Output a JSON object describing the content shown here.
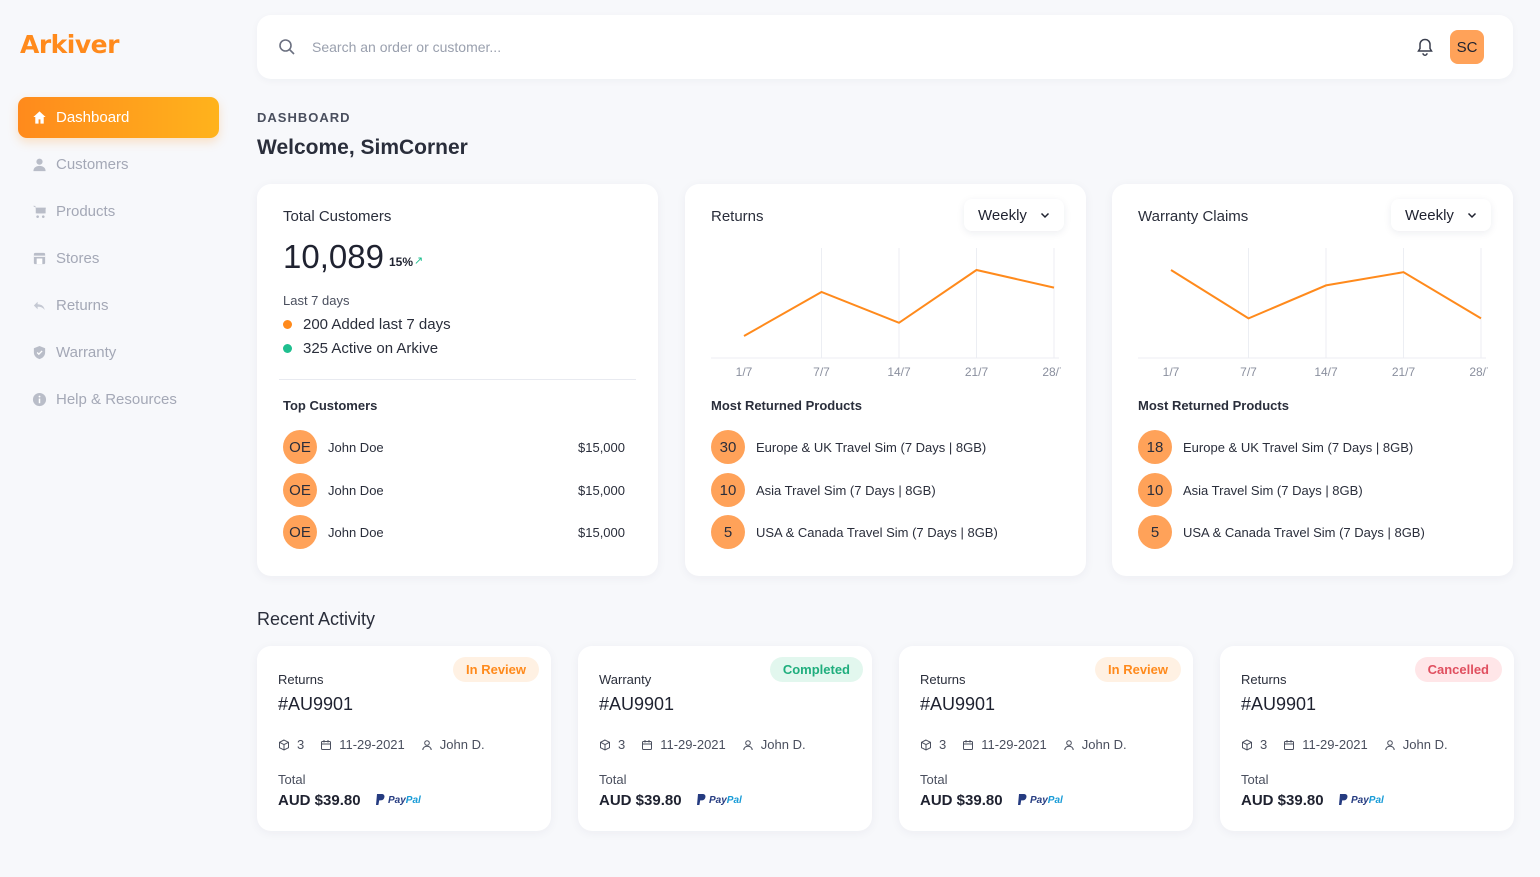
{
  "brand": {
    "logo": "Arkiver",
    "accent": "#ff8a1c"
  },
  "nav": [
    {
      "label": "Dashboard",
      "icon": "home-icon",
      "active": true
    },
    {
      "label": "Customers",
      "icon": "user-icon"
    },
    {
      "label": "Products",
      "icon": "cart-icon"
    },
    {
      "label": "Stores",
      "icon": "store-icon"
    },
    {
      "label": "Returns",
      "icon": "return-icon"
    },
    {
      "label": "Warranty",
      "icon": "shield-icon"
    },
    {
      "label": "Help & Resources",
      "icon": "info-icon"
    }
  ],
  "search": {
    "placeholder": "Search an order or customer..."
  },
  "user": {
    "initials": "SC"
  },
  "breadcrumb": "DASHBOARD",
  "welcome": "Welcome, SimCorner",
  "total_customers": {
    "title": "Total Customers",
    "value": "10,089",
    "change": "15%",
    "period": "Last 7 days",
    "stats": [
      {
        "text": "200 Added last 7 days",
        "color": "#ff8a1c"
      },
      {
        "text": "325 Active on Arkive",
        "color": "#1fbf8f"
      }
    ],
    "top_title": "Top Customers",
    "top": [
      {
        "initials": "OE",
        "name": "John Doe",
        "amount": "$15,000"
      },
      {
        "initials": "OE",
        "name": "John Doe",
        "amount": "$15,000"
      },
      {
        "initials": "OE",
        "name": "John Doe",
        "amount": "$15,000"
      }
    ]
  },
  "returns": {
    "title": "Returns",
    "period": "Weekly",
    "list_title": "Most Returned Products",
    "products": [
      {
        "count": "30",
        "name": "Europe & UK Travel Sim (7 Days | 8GB)"
      },
      {
        "count": "10",
        "name": "Asia Travel Sim (7 Days | 8GB)"
      },
      {
        "count": "5",
        "name": "USA & Canada Travel Sim (7 Days | 8GB)"
      }
    ]
  },
  "warranty": {
    "title": "Warranty Claims",
    "period": "Weekly",
    "list_title": "Most Returned Products",
    "products": [
      {
        "count": "18",
        "name": "Europe & UK Travel Sim (7 Days | 8GB)"
      },
      {
        "count": "10",
        "name": "Asia Travel Sim (7 Days | 8GB)"
      },
      {
        "count": "5",
        "name": "USA & Canada Travel Sim (7 Days | 8GB)"
      }
    ]
  },
  "chart_data": [
    {
      "type": "line",
      "x": [
        "1/7",
        "7/7",
        "14/7",
        "21/7",
        "28/7"
      ],
      "values": [
        1,
        3,
        1.6,
        4,
        3.2
      ],
      "ylim": [
        0,
        5
      ],
      "grid": true,
      "color": "#ff8a1c"
    },
    {
      "type": "line",
      "x": [
        "1/7",
        "7/7",
        "14/7",
        "21/7",
        "28/7"
      ],
      "values": [
        4,
        1.8,
        3.3,
        3.9,
        1.8
      ],
      "ylim": [
        0,
        5
      ],
      "grid": true,
      "color": "#ff8a1c"
    }
  ],
  "recent": {
    "title": "Recent Activity",
    "items": [
      {
        "type": "Returns",
        "id": "#AU9901",
        "status": "In Review",
        "status_bg": "#fff1e3",
        "status_color": "#ff8a1c",
        "qty": "3",
        "date": "11-29-2021",
        "user": "John D.",
        "total_label": "Total",
        "total": "AUD $39.80",
        "pay1": "Pay",
        "pay2": "Pal"
      },
      {
        "type": "Warranty",
        "id": "#AU9901",
        "status": "Completed",
        "status_bg": "#e2f7ee",
        "status_color": "#1fae7d",
        "qty": "3",
        "date": "11-29-2021",
        "user": "John D.",
        "total_label": "Total",
        "total": "AUD $39.80",
        "pay1": "Pay",
        "pay2": "Pal"
      },
      {
        "type": "Returns",
        "id": "#AU9901",
        "status": "In Review",
        "status_bg": "#fff1e3",
        "status_color": "#ff8a1c",
        "qty": "3",
        "date": "11-29-2021",
        "user": "John D.",
        "total_label": "Total",
        "total": "AUD $39.80",
        "pay1": "Pay",
        "pay2": "Pal"
      },
      {
        "type": "Returns",
        "id": "#AU9901",
        "status": "Cancelled",
        "status_bg": "#ffe6e8",
        "status_color": "#e04f5f",
        "qty": "3",
        "date": "11-29-2021",
        "user": "John D.",
        "total_label": "Total",
        "total": "AUD $39.80",
        "pay1": "Pay",
        "pay2": "Pal"
      }
    ]
  }
}
